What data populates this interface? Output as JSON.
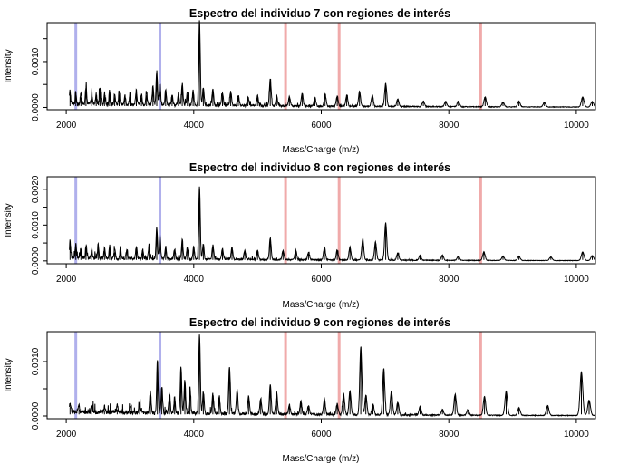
{
  "chart_data": [
    {
      "type": "line",
      "title": "Espectro del individuo 7 con regiones de interés",
      "xlabel": "Mass/Charge (m/z)",
      "ylabel": "Intensity",
      "xlim": [
        1700,
        10300
      ],
      "ylim": [
        -5e-05,
        0.00185
      ],
      "x_ticks": [
        2000,
        4000,
        6000,
        8000,
        10000
      ],
      "x_tick_labels": [
        "2000",
        "4000",
        "6000",
        "8000",
        "10000"
      ],
      "y_ticks": [
        0.0,
        0.0005,
        0.001,
        0.0015
      ],
      "y_tick_labels": [
        "0.0000",
        "",
        "0.0010",
        ""
      ],
      "grid": false,
      "regions": [
        {
          "x": 2150,
          "color": "#b0b0ec"
        },
        {
          "x": 3470,
          "color": "#b0b0ec"
        },
        {
          "x": 5440,
          "color": "#f0aaaa"
        },
        {
          "x": 6280,
          "color": "#f0aaaa"
        },
        {
          "x": 8500,
          "color": "#f0aaaa"
        }
      ],
      "peaks": [
        [
          2060,
          0.00028
        ],
        [
          2150,
          0.00026
        ],
        [
          2230,
          0.00022
        ],
        [
          2310,
          0.00036
        ],
        [
          2400,
          0.0002
        ],
        [
          2470,
          0.00022
        ],
        [
          2530,
          0.00032
        ],
        [
          2600,
          0.00024
        ],
        [
          2680,
          0.0003
        ],
        [
          2760,
          0.00022
        ],
        [
          2830,
          0.00028
        ],
        [
          2920,
          0.00022
        ],
        [
          3000,
          0.00024
        ],
        [
          3100,
          0.0003
        ],
        [
          3180,
          0.00022
        ],
        [
          3260,
          0.00026
        ],
        [
          3360,
          0.0004
        ],
        [
          3420,
          0.00075
        ],
        [
          3470,
          0.00045
        ],
        [
          3560,
          0.00032
        ],
        [
          3660,
          0.00022
        ],
        [
          3760,
          0.00026
        ],
        [
          3820,
          0.00046
        ],
        [
          3900,
          0.00028
        ],
        [
          3990,
          0.00032
        ],
        [
          4090,
          0.00185
        ],
        [
          4150,
          0.0004
        ],
        [
          4300,
          0.00036
        ],
        [
          4450,
          0.00028
        ],
        [
          4580,
          0.00032
        ],
        [
          4700,
          0.00022
        ],
        [
          4850,
          0.0002
        ],
        [
          5000,
          0.00022
        ],
        [
          5200,
          0.00058
        ],
        [
          5300,
          0.00022
        ],
        [
          5500,
          0.0002
        ],
        [
          5700,
          0.00028
        ],
        [
          5900,
          0.00018
        ],
        [
          6060,
          0.00026
        ],
        [
          6250,
          0.00022
        ],
        [
          6400,
          0.00024
        ],
        [
          6600,
          0.00032
        ],
        [
          6800,
          0.00024
        ],
        [
          7010,
          0.0005
        ],
        [
          7200,
          0.00016
        ],
        [
          7600,
          0.00012
        ],
        [
          7950,
          0.00012
        ],
        [
          8150,
          0.00012
        ],
        [
          8570,
          0.00022
        ],
        [
          8850,
          0.0001
        ],
        [
          9100,
          0.00012
        ],
        [
          9500,
          0.0001
        ],
        [
          10100,
          0.00022
        ],
        [
          10250,
          0.00012
        ]
      ]
    },
    {
      "type": "line",
      "title": "Espectro del individuo 8 con regiones de interés",
      "xlabel": "Mass/Charge (m/z)",
      "ylabel": "Intensity",
      "xlim": [
        1700,
        10300
      ],
      "ylim": [
        -8e-05,
        0.00235
      ],
      "x_ticks": [
        2000,
        4000,
        6000,
        8000,
        10000
      ],
      "x_tick_labels": [
        "2000",
        "4000",
        "6000",
        "8000",
        "10000"
      ],
      "y_ticks": [
        0.0,
        0.0005,
        0.001,
        0.0015,
        0.002
      ],
      "y_tick_labels": [
        "0.0000",
        "",
        "0.0010",
        "",
        "0.0020"
      ],
      "grid": false,
      "regions": [
        {
          "x": 2150,
          "color": "#b0b0ec"
        },
        {
          "x": 3470,
          "color": "#b0b0ec"
        },
        {
          "x": 5440,
          "color": "#f0aaaa"
        },
        {
          "x": 6280,
          "color": "#f0aaaa"
        },
        {
          "x": 8500,
          "color": "#f0aaaa"
        }
      ],
      "peaks": [
        [
          2060,
          0.00048
        ],
        [
          2150,
          0.0004
        ],
        [
          2230,
          0.00028
        ],
        [
          2310,
          0.00036
        ],
        [
          2400,
          0.00026
        ],
        [
          2500,
          0.00038
        ],
        [
          2600,
          0.00028
        ],
        [
          2680,
          0.00034
        ],
        [
          2760,
          0.00024
        ],
        [
          2850,
          0.00032
        ],
        [
          2950,
          0.00026
        ],
        [
          3100,
          0.00034
        ],
        [
          3200,
          0.00026
        ],
        [
          3300,
          0.00042
        ],
        [
          3420,
          0.00088
        ],
        [
          3470,
          0.0006
        ],
        [
          3560,
          0.00034
        ],
        [
          3700,
          0.00028
        ],
        [
          3820,
          0.00055
        ],
        [
          3900,
          0.00032
        ],
        [
          4000,
          0.00036
        ],
        [
          4090,
          0.00205
        ],
        [
          4150,
          0.00042
        ],
        [
          4300,
          0.0004
        ],
        [
          4450,
          0.0003
        ],
        [
          4600,
          0.00034
        ],
        [
          4800,
          0.00026
        ],
        [
          5000,
          0.00026
        ],
        [
          5200,
          0.0006
        ],
        [
          5400,
          0.00026
        ],
        [
          5600,
          0.00028
        ],
        [
          5800,
          0.0002
        ],
        [
          6050,
          0.00036
        ],
        [
          6250,
          0.00028
        ],
        [
          6450,
          0.00036
        ],
        [
          6650,
          0.00058
        ],
        [
          6850,
          0.0005
        ],
        [
          7010,
          0.00105
        ],
        [
          7200,
          0.0002
        ],
        [
          7550,
          0.00014
        ],
        [
          7900,
          0.00014
        ],
        [
          8150,
          0.00012
        ],
        [
          8550,
          0.00024
        ],
        [
          8850,
          0.00012
        ],
        [
          9100,
          0.00012
        ],
        [
          9600,
          0.0001
        ],
        [
          10100,
          0.00024
        ],
        [
          10250,
          0.00014
        ]
      ]
    },
    {
      "type": "line",
      "title": "Espectro del individuo 9 con regiones de interés",
      "xlabel": "Mass/Charge (m/z)",
      "ylabel": "Intensity",
      "xlim": [
        1700,
        10300
      ],
      "ylim": [
        -5e-05,
        0.00155
      ],
      "x_ticks": [
        2000,
        4000,
        6000,
        8000,
        10000
      ],
      "x_tick_labels": [
        "2000",
        "4000",
        "6000",
        "8000",
        "10000"
      ],
      "y_ticks": [
        0.0,
        0.0005,
        0.001
      ],
      "y_tick_labels": [
        "0.0000",
        "",
        "0.0010"
      ],
      "grid": false,
      "regions": [
        {
          "x": 2150,
          "color": "#b0b0ec"
        },
        {
          "x": 3470,
          "color": "#b0b0ec"
        },
        {
          "x": 5440,
          "color": "#f0aaaa"
        },
        {
          "x": 6280,
          "color": "#f0aaaa"
        },
        {
          "x": 8500,
          "color": "#f0aaaa"
        }
      ],
      "peaks": [
        [
          2060,
          0.00016
        ],
        [
          2200,
          0.00012
        ],
        [
          2400,
          0.0001
        ],
        [
          2600,
          0.0001
        ],
        [
          2800,
          0.00012
        ],
        [
          3000,
          0.0001
        ],
        [
          3150,
          0.00018
        ],
        [
          3320,
          0.00042
        ],
        [
          3430,
          0.001
        ],
        [
          3500,
          0.0005
        ],
        [
          3620,
          0.00036
        ],
        [
          3700,
          0.00028
        ],
        [
          3800,
          0.00085
        ],
        [
          3860,
          0.00062
        ],
        [
          3940,
          0.00048
        ],
        [
          4090,
          0.00148
        ],
        [
          4150,
          0.0004
        ],
        [
          4300,
          0.00036
        ],
        [
          4400,
          0.00032
        ],
        [
          4560,
          0.00088
        ],
        [
          4680,
          0.00044
        ],
        [
          4860,
          0.00034
        ],
        [
          5050,
          0.00028
        ],
        [
          5200,
          0.00055
        ],
        [
          5300,
          0.00042
        ],
        [
          5500,
          0.00018
        ],
        [
          5680,
          0.00024
        ],
        [
          5800,
          0.00016
        ],
        [
          6050,
          0.00028
        ],
        [
          6250,
          0.0002
        ],
        [
          6350,
          0.00038
        ],
        [
          6450,
          0.00044
        ],
        [
          6620,
          0.00125
        ],
        [
          6700,
          0.00036
        ],
        [
          6810,
          0.0002
        ],
        [
          6980,
          0.00085
        ],
        [
          7100,
          0.00044
        ],
        [
          7200,
          0.00024
        ],
        [
          7550,
          0.00016
        ],
        [
          7900,
          0.0001
        ],
        [
          8100,
          0.00038
        ],
        [
          8300,
          0.0001
        ],
        [
          8560,
          0.00034
        ],
        [
          8900,
          0.00044
        ],
        [
          9100,
          0.00014
        ],
        [
          9550,
          0.00018
        ],
        [
          10080,
          0.0008
        ],
        [
          10200,
          0.00028
        ]
      ]
    }
  ]
}
